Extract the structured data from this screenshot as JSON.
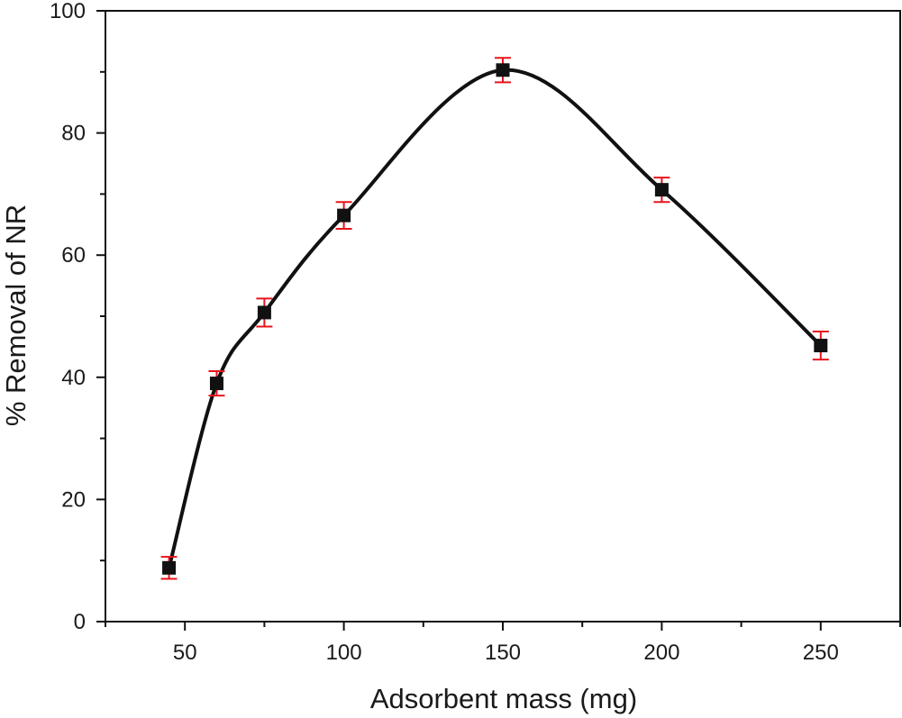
{
  "chart_data": {
    "type": "line",
    "title": "",
    "xlabel": "Adsorbent mass (mg)",
    "ylabel": "% Removal of NR",
    "xlim": [
      25,
      275
    ],
    "ylim": [
      0,
      100
    ],
    "x_ticks": [
      50,
      100,
      150,
      200,
      250
    ],
    "y_ticks": [
      0,
      20,
      40,
      60,
      80,
      100
    ],
    "grid": false,
    "legend": "none",
    "curve": "smooth spline",
    "series": [
      {
        "x": [
          45,
          60,
          75,
          100,
          150,
          200,
          250
        ],
        "y": [
          8.8,
          39.0,
          50.6,
          66.5,
          90.3,
          70.7,
          45.2
        ],
        "error": [
          1.8,
          2.0,
          2.3,
          2.2,
          2.0,
          2.0,
          2.3
        ]
      }
    ],
    "colors": {
      "line": "#111111",
      "marker": "#111111",
      "error_bar": "#e8141c",
      "axis": "#111111"
    }
  }
}
